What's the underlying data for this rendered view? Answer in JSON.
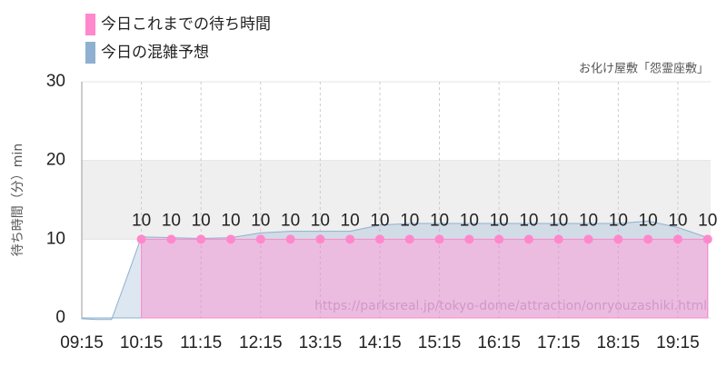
{
  "chart_data": {
    "type": "line",
    "subtitle": "お化け屋敷「怨霊座敷」",
    "y_label": "待ち時間（分）min",
    "annotation": "https://parksreal.jp/tokyo-dome/attraction/onryouzashiki.html",
    "xlim": [
      "09:15",
      "19:48"
    ],
    "xticks": [
      "09:15",
      "10:15",
      "11:15",
      "12:15",
      "13:15",
      "14:15",
      "15:15",
      "16:15",
      "17:15",
      "18:15",
      "19:15"
    ],
    "ylim": [
      0,
      30
    ],
    "yticks": [
      0,
      10,
      20,
      30
    ],
    "shaded_range": [
      10,
      20
    ],
    "series": [
      {
        "name": "今日これまでの待ち時間",
        "color": "#ff88cc",
        "x": [
          "10:15",
          "10:45",
          "11:15",
          "11:45",
          "12:15",
          "12:45",
          "13:15",
          "13:45",
          "14:15",
          "14:45",
          "15:15",
          "15:45",
          "16:15",
          "16:45",
          "17:15",
          "17:45",
          "18:15",
          "18:45",
          "19:15",
          "19:45"
        ],
        "values": [
          10,
          10,
          10,
          10,
          10,
          10,
          10,
          10,
          10,
          10,
          10,
          10,
          10,
          10,
          10,
          10,
          10,
          10,
          10,
          10
        ]
      },
      {
        "name": "今日の混雑予想",
        "color": "#8fb0d0",
        "x": [
          "09:15",
          "09:30",
          "09:45",
          "10:00",
          "10:15",
          "10:45",
          "11:15",
          "11:45",
          "12:15",
          "12:45",
          "13:15",
          "13:45",
          "14:15",
          "14:45",
          "15:15",
          "15:45",
          "16:15",
          "16:45",
          "17:15",
          "17:45",
          "18:15",
          "18:45",
          "19:15",
          "19:45"
        ],
        "values": [
          -0.1,
          -0.2,
          -0.2,
          5,
          10.3,
          10.2,
          10.1,
          10.2,
          10.8,
          11,
          11,
          11,
          11.8,
          12,
          12,
          12,
          12,
          12,
          12,
          12,
          12,
          12.3,
          11.5,
          10.2
        ]
      }
    ]
  }
}
